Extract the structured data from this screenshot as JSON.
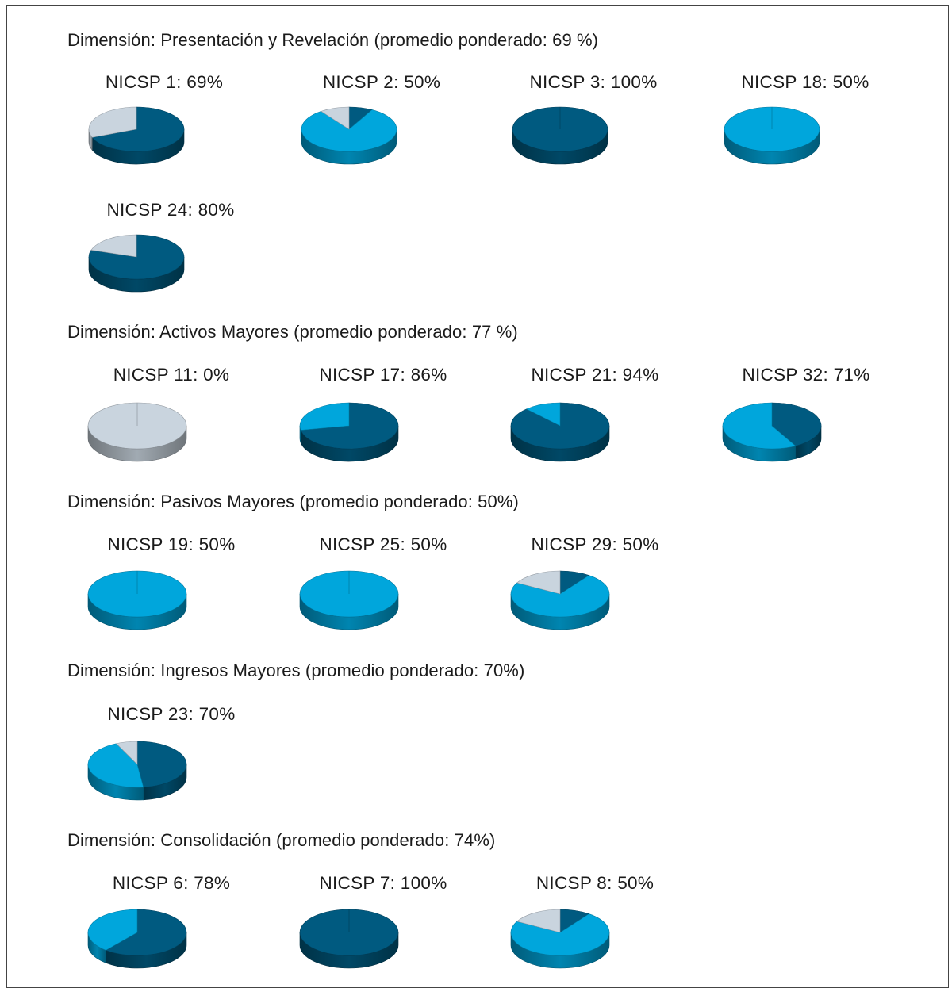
{
  "colors": {
    "dark": "#005a80",
    "light": "#00a6dc",
    "pale": "#c9d4de",
    "border": "#444444"
  },
  "chart_data": [
    {
      "type": "pie",
      "title": "Dimensión: Presentación y Revelación (promedio ponderado: 69 %)",
      "pies": [
        {
          "label": "NICSP 1: 69%",
          "slices": [
            {
              "color": "dark",
              "value": 69
            },
            {
              "color": "pale",
              "value": 31
            }
          ]
        },
        {
          "label": "NICSP 2: 50%",
          "slices": [
            {
              "color": "dark",
              "value": 8
            },
            {
              "color": "light",
              "value": 82
            },
            {
              "color": "pale",
              "value": 10
            }
          ]
        },
        {
          "label": "NICSP 3: 100%",
          "slices": [
            {
              "color": "dark",
              "value": 100
            }
          ]
        },
        {
          "label": "NICSP 18: 50%",
          "slices": [
            {
              "color": "light",
              "value": 100
            }
          ]
        },
        {
          "label": "NICSP 24: 80%",
          "slices": [
            {
              "color": "dark",
              "value": 80
            },
            {
              "color": "pale",
              "value": 20
            }
          ]
        }
      ]
    },
    {
      "type": "pie",
      "title": "Dimensión: Activos Mayores (promedio ponderado: 77 %)",
      "pies": [
        {
          "label": "NICSP 11: 0%",
          "slices": [
            {
              "color": "pale",
              "value": 100
            }
          ]
        },
        {
          "label": "NICSP 17: 86%",
          "slices": [
            {
              "color": "dark",
              "value": 72
            },
            {
              "color": "light",
              "value": 28
            }
          ]
        },
        {
          "label": "NICSP 21: 94%",
          "slices": [
            {
              "color": "dark",
              "value": 88
            },
            {
              "color": "light",
              "value": 12
            }
          ]
        },
        {
          "label": "NICSP 32: 71%",
          "slices": [
            {
              "color": "dark",
              "value": 42
            },
            {
              "color": "light",
              "value": 58
            }
          ]
        }
      ]
    },
    {
      "type": "pie",
      "title": "Dimensión: Pasivos Mayores (promedio ponderado: 50%)",
      "pies": [
        {
          "label": "NICSP 19: 50%",
          "slices": [
            {
              "color": "light",
              "value": 100
            }
          ]
        },
        {
          "label": "NICSP 25: 50%",
          "slices": [
            {
              "color": "light",
              "value": 100
            }
          ]
        },
        {
          "label": "NICSP 29: 50%",
          "slices": [
            {
              "color": "dark",
              "value": 10
            },
            {
              "color": "light",
              "value": 73
            },
            {
              "color": "pale",
              "value": 17
            }
          ]
        }
      ]
    },
    {
      "type": "pie",
      "title": "Dimensión: Ingresos Mayores (promedio ponderado: 70%)",
      "pies": [
        {
          "label": "NICSP 23: 70%",
          "slices": [
            {
              "color": "dark",
              "value": 48
            },
            {
              "color": "light",
              "value": 45
            },
            {
              "color": "pale",
              "value": 7
            }
          ]
        }
      ]
    },
    {
      "type": "pie",
      "title": "Dimensión: Consolidación (promedio ponderado: 74%)",
      "pies": [
        {
          "label": "NICSP 6: 78%",
          "slices": [
            {
              "color": "dark",
              "value": 61
            },
            {
              "color": "light",
              "value": 39
            }
          ]
        },
        {
          "label": "NICSP 7: 100%",
          "slices": [
            {
              "color": "dark",
              "value": 100
            }
          ]
        },
        {
          "label": "NICSP 8: 50%",
          "slices": [
            {
              "color": "dark",
              "value": 10
            },
            {
              "color": "light",
              "value": 73
            },
            {
              "color": "pale",
              "value": 17
            }
          ]
        }
      ]
    }
  ]
}
